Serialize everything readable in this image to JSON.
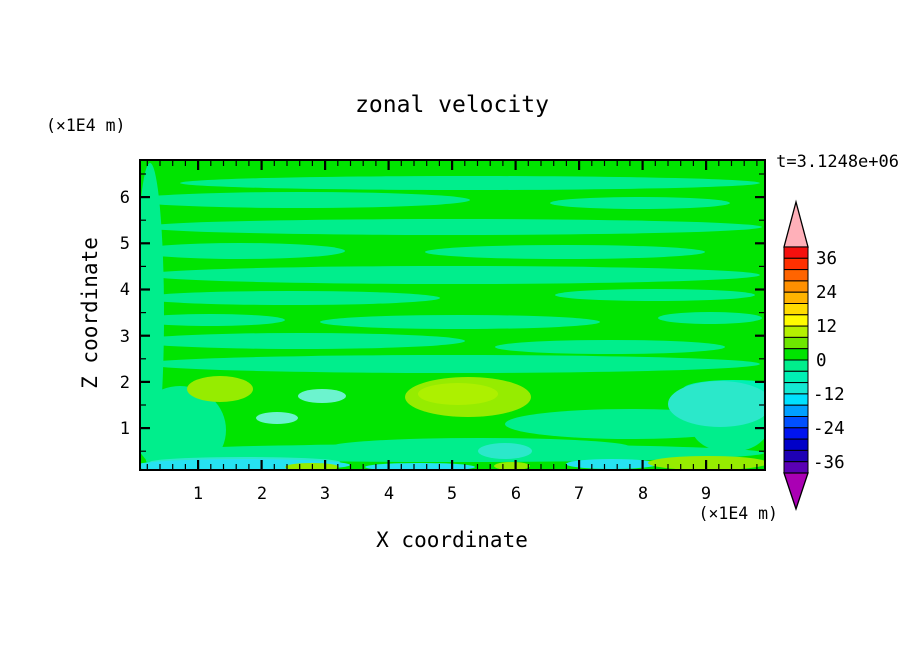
{
  "title": "zonal velocity",
  "annotations": {
    "time_label": "t=3.1248e+06",
    "z_unit_label": "(×1E4 m)",
    "x_unit_label": "(×1E4 m)"
  },
  "axes": {
    "x": {
      "label": "X coordinate",
      "ticks": [
        "1",
        "2",
        "3",
        "4",
        "5",
        "6",
        "7",
        "8",
        "9"
      ],
      "major_ticks": [
        1,
        2,
        3,
        4,
        5,
        6,
        7,
        8,
        9
      ],
      "minor_step": 0.2,
      "range": [
        0.1,
        9.9
      ]
    },
    "z": {
      "label": "Z coordinate",
      "ticks": [
        "1",
        "2",
        "3",
        "4",
        "5",
        "6"
      ],
      "major_ticks": [
        1,
        2,
        3,
        4,
        5,
        6
      ],
      "minor_step": 0.5,
      "range": [
        0.1,
        6.8
      ]
    }
  },
  "colorbar": {
    "tick_labels": [
      "36",
      "24",
      "12",
      "0",
      "-12",
      "-24",
      "-36"
    ],
    "over_color": "#FFB0B9",
    "under_color": "#AA00B4",
    "cells": [
      "#F5100E",
      "#FF3000",
      "#FF6400",
      "#FF9000",
      "#FFB400",
      "#FFDC00",
      "#FFFC00",
      "#B4F000",
      "#6EE600",
      "#00E400",
      "#00EE8C",
      "#00F0B4",
      "#14E8D2",
      "#00E1FF",
      "#00A0FF",
      "#0050FF",
      "#0014F0",
      "#0000C8",
      "#1E00B4",
      "#5A00B4"
    ]
  },
  "palette": {
    "base_green": "#00E400",
    "spring_green": "#00EE8C",
    "mint": "#00F0B4",
    "pale_mint": "#6CF3CE",
    "turquoise": "#2BE8CA",
    "cyan": "#26E2F2",
    "chartreuse": "#96EC00",
    "chartreuse_light": "#ADF000",
    "border": "#000000"
  },
  "chart_data": {
    "type": "heatmap",
    "subtype": "filled-contour",
    "title": "zonal velocity",
    "time_annotation": "t=3.1248e+06",
    "xlabel": "X coordinate",
    "ylabel": "Z coordinate",
    "x_units": "×1E4 m",
    "z_units": "×1E4 m",
    "xlim": [
      0.1,
      9.9
    ],
    "zlim": [
      0.1,
      6.8
    ],
    "x_major_ticks": [
      1,
      2,
      3,
      4,
      5,
      6,
      7,
      8,
      9
    ],
    "z_major_ticks": [
      1,
      2,
      3,
      4,
      5,
      6
    ],
    "contour_interval": 4,
    "levels": [
      -40,
      -36,
      -32,
      -28,
      -24,
      -20,
      -16,
      -12,
      -8,
      -4,
      0,
      4,
      8,
      12,
      16,
      20,
      24,
      28,
      32,
      36,
      40
    ],
    "colorbar_labeled_levels": [
      36,
      24,
      12,
      0,
      -12,
      -24,
      -36
    ],
    "colorbar_range": [
      -40,
      40
    ],
    "legend_position": "right",
    "grid": false,
    "field_summary": "Velocity field mostly between -4 and +4 (two alternating green bands in wavy horizontal streaks) over the whole domain; stronger features confined below z≈2.2.",
    "features": [
      {
        "x": 1.3,
        "z": 1.9,
        "value_range": "4 to 10",
        "description": "small chartreuse positive patch"
      },
      {
        "x": 5.2,
        "z": 1.8,
        "value_range": "4 to 12",
        "description": "elongated chartreuse positive patch"
      },
      {
        "x": 9.2,
        "z": 1.5,
        "value_range": "-12 to -6",
        "description": "large turquoise negative pool near right edge"
      },
      {
        "x": 5.8,
        "z": 0.6,
        "value_range": "-10 to -6",
        "description": "small turquoise negative blob"
      },
      {
        "x": 2.3,
        "z": 1.6,
        "value_range": "-8 to -4",
        "description": "pale mint negative patches"
      },
      {
        "x": 2.0,
        "z": 0.1,
        "value_range": "-14 to -10",
        "description": "cyan strip along bottom boundary, left half"
      },
      {
        "x": 9.0,
        "z": 0.15,
        "value_range": "4 to 8",
        "description": "chartreuse strip along bottom boundary, right side"
      },
      {
        "x": 5.0,
        "z": 0.1,
        "value_range": "4 to 6",
        "description": "tiny chartreuse speck at bottom center"
      }
    ]
  }
}
